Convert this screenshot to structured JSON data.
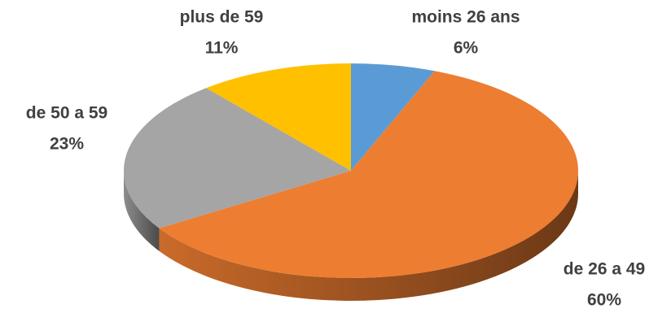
{
  "chart_data": {
    "type": "pie",
    "categories": [
      "moins 26 ans",
      "de 26 a 49",
      "de 50 a 59",
      "plus de 59"
    ],
    "values": [
      6,
      60,
      23,
      11
    ],
    "value_labels": [
      "6%",
      "60%",
      "23%",
      "11%"
    ],
    "colors": [
      "#5b9bd5",
      "#ed7d31",
      "#a5a5a5",
      "#ffc000"
    ]
  }
}
